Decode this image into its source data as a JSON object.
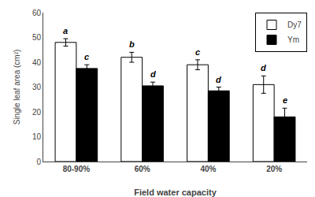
{
  "chart_data": {
    "type": "bar",
    "categories": [
      "80-90%",
      "60%",
      "40%",
      "20%"
    ],
    "series": [
      {
        "name": "Dy7",
        "color": "#ffffff",
        "values": [
          48.0,
          42.0,
          39.0,
          31.0
        ],
        "errors": [
          1.5,
          2.0,
          2.0,
          3.5
        ],
        "annotations": [
          "a",
          "b",
          "c",
          "d"
        ]
      },
      {
        "name": "Ym",
        "color": "#000000",
        "values": [
          37.5,
          30.5,
          28.5,
          18.0
        ],
        "errors": [
          1.5,
          1.5,
          1.5,
          3.5
        ],
        "annotations": [
          "c",
          "d",
          "d",
          "e"
        ]
      }
    ],
    "xlabel": "Field water capacity",
    "ylabel": "Single leaf area (cm²)",
    "ylim": [
      0,
      60
    ],
    "yticks": [
      0,
      10,
      20,
      30,
      40,
      50,
      60
    ],
    "grid": false,
    "legend": "upper right"
  }
}
